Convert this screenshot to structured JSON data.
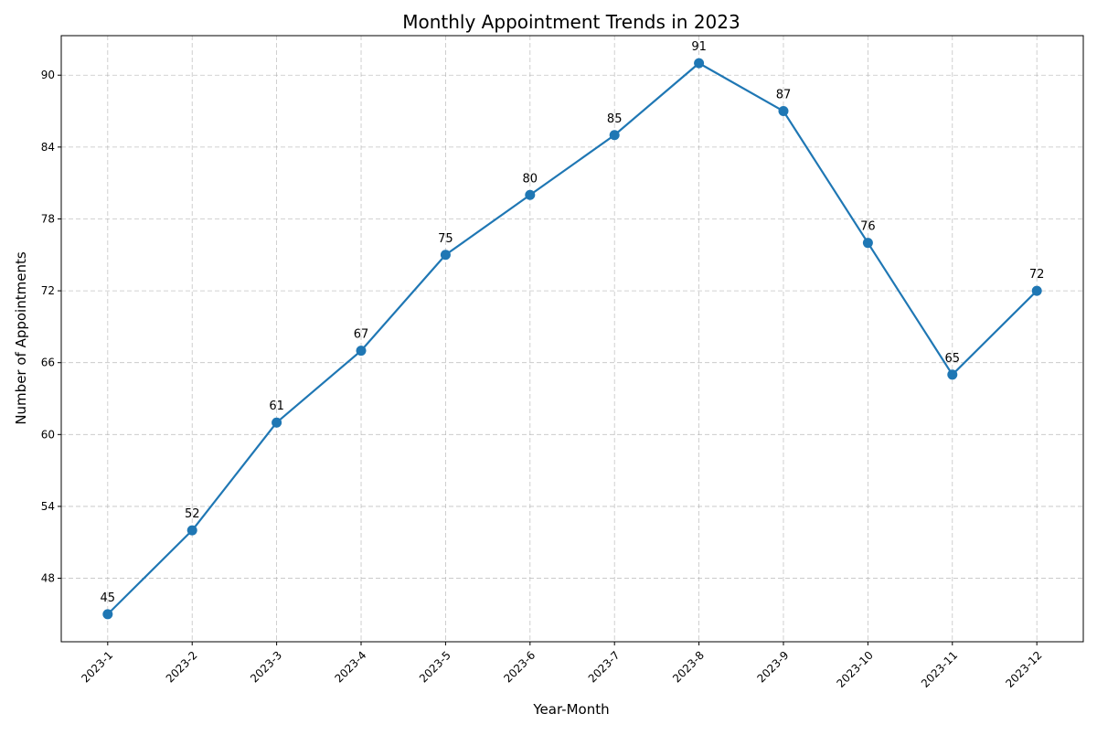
{
  "chart_data": {
    "type": "line",
    "title": "Monthly Appointment Trends in 2023",
    "xlabel": "Year-Month",
    "ylabel": "Number of Appointments",
    "categories": [
      "2023-1",
      "2023-2",
      "2023-3",
      "2023-4",
      "2023-5",
      "2023-6",
      "2023-7",
      "2023-8",
      "2023-9",
      "2023-10",
      "2023-11",
      "2023-12"
    ],
    "series": [
      {
        "values": [
          45,
          52,
          61,
          67,
          75,
          80,
          85,
          91,
          87,
          76,
          65,
          72
        ],
        "color": "#1f77b4"
      }
    ],
    "ylim": [
      42.7,
      93.3
    ],
    "yticks": [
      48,
      54,
      60,
      66,
      72,
      78,
      84,
      90
    ],
    "grid": true,
    "data_labels": true,
    "legend": "none",
    "x_tick_rotation": 45
  }
}
